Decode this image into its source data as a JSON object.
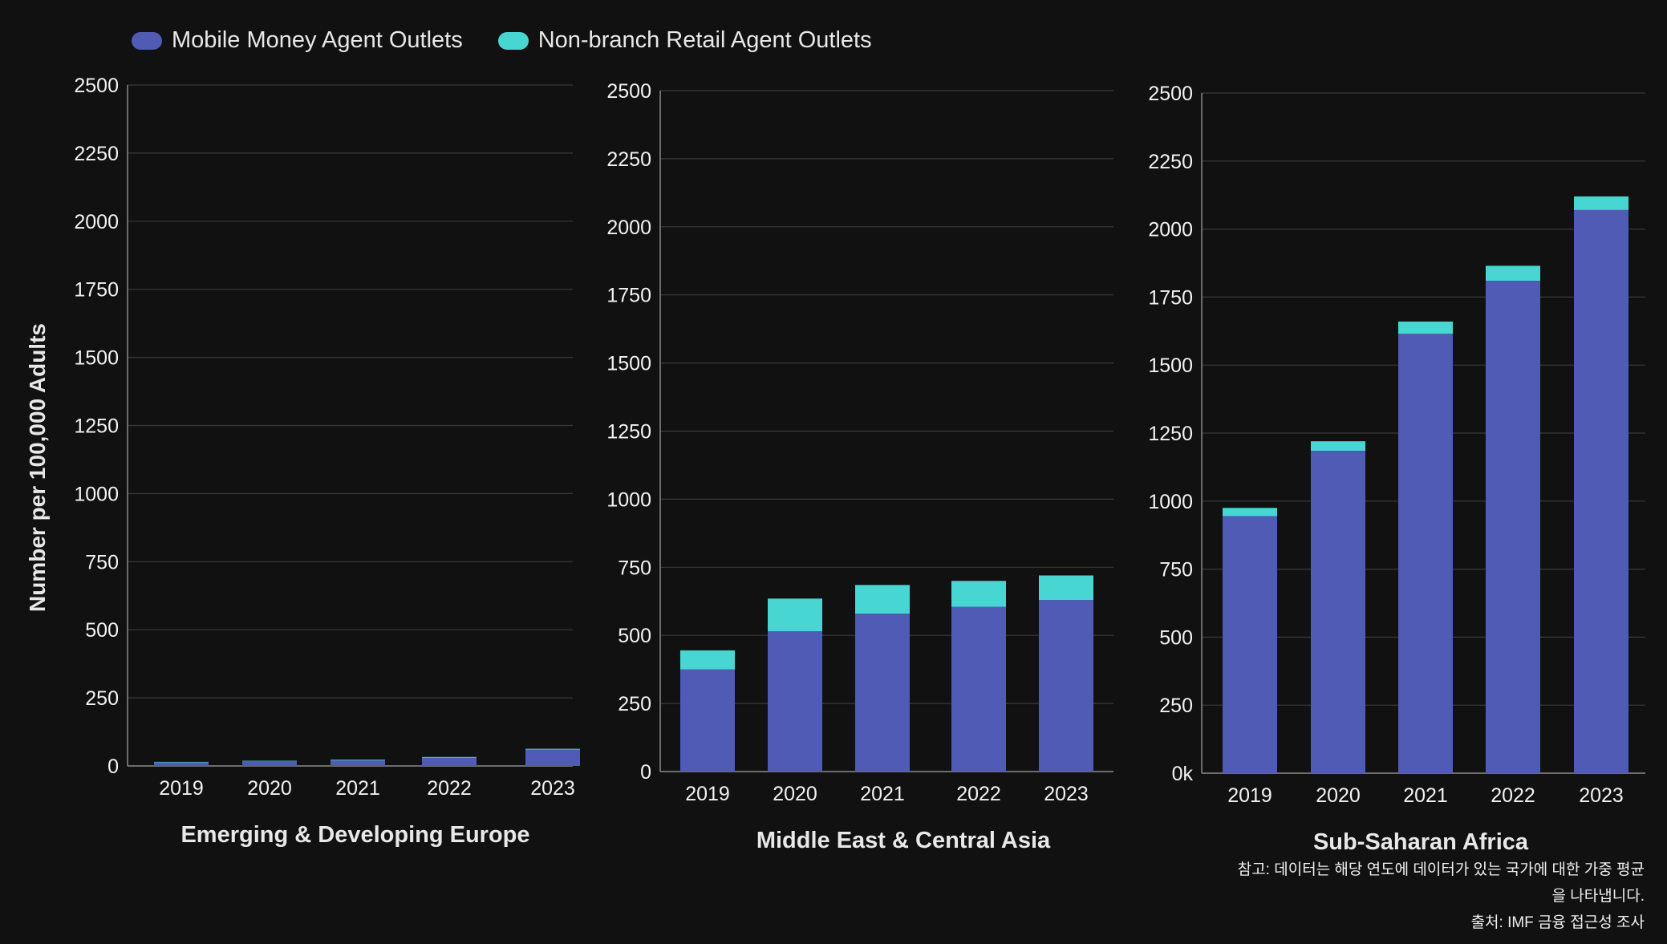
{
  "legend": [
    {
      "label": "Mobile Money Agent Outlets",
      "color": "#4f5bb5"
    },
    {
      "label": "Non-branch Retail Agent Outlets",
      "color": "#48d6d2"
    }
  ],
  "y_axis_title": "Number per 100,000 Adults",
  "notes": {
    "note": "참고: 데이터는 해당 연도에 데이터가 있는 국가에 대한 가중 평균을 나타냅니다.",
    "source": "출처: IMF 금융 접근성 조사"
  },
  "colors": {
    "background": "#111111",
    "grid": "#3a3a3a",
    "axis": "#8a8a8a",
    "mobile": "#4f5bb5",
    "retail": "#48d6d2"
  },
  "chart_data": [
    {
      "type": "bar",
      "stacked": true,
      "title": "Emerging & Developing Europe",
      "categories": [
        "2019",
        "2020",
        "2021",
        "2022",
        "2023"
      ],
      "yticks": [
        "0",
        "250",
        "500",
        "750",
        "1000",
        "1250",
        "1500",
        "1750",
        "2000",
        "2250",
        "2500"
      ],
      "ylim": [
        0,
        2500
      ],
      "grid": true,
      "series": [
        {
          "name": "Mobile Money Agent Outlets",
          "values": [
            13,
            17,
            20,
            30,
            60
          ]
        },
        {
          "name": "Non-branch Retail Agent Outlets",
          "values": [
            2,
            2,
            3,
            3,
            3
          ]
        }
      ]
    },
    {
      "type": "bar",
      "stacked": true,
      "title": "Middle East & Central Asia",
      "categories": [
        "2019",
        "2020",
        "2021",
        "2022",
        "2023"
      ],
      "yticks": [
        "0",
        "250",
        "500",
        "750",
        "1000",
        "1250",
        "1500",
        "1750",
        "2000",
        "2250",
        "2500"
      ],
      "ylim": [
        0,
        2500
      ],
      "grid": true,
      "series": [
        {
          "name": "Mobile Money Agent Outlets",
          "values": [
            375,
            515,
            580,
            605,
            630
          ]
        },
        {
          "name": "Non-branch Retail Agent Outlets",
          "values": [
            70,
            120,
            105,
            95,
            90
          ]
        }
      ]
    },
    {
      "type": "bar",
      "stacked": true,
      "title": "Sub-Saharan Africa",
      "categories": [
        "2019",
        "2020",
        "2021",
        "2022",
        "2023"
      ],
      "yticks": [
        "0k",
        "250",
        "500",
        "750",
        "1000",
        "1250",
        "1500",
        "1750",
        "2000",
        "2250",
        "2500"
      ],
      "ylim": [
        0,
        2500
      ],
      "grid": true,
      "series": [
        {
          "name": "Mobile Money Agent Outlets",
          "values": [
            945,
            1185,
            1615,
            1810,
            2070
          ]
        },
        {
          "name": "Non-branch Retail Agent Outlets",
          "values": [
            30,
            35,
            45,
            55,
            50
          ]
        }
      ]
    }
  ]
}
